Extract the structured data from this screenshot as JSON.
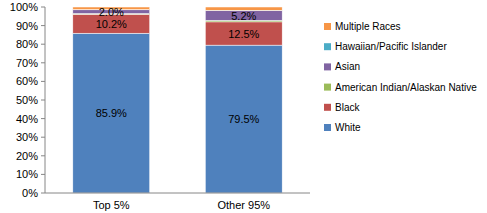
{
  "chart_data": {
    "type": "bar",
    "stacked": true,
    "data_labels": true,
    "grid": false,
    "legend": "right",
    "categories": [
      "Top 5%",
      "Other 95%"
    ],
    "ylim": [
      0,
      100
    ],
    "yticks": [
      {
        "value": 0,
        "label": "0%"
      },
      {
        "value": 10,
        "label": "10%"
      },
      {
        "value": 20,
        "label": "20%"
      },
      {
        "value": 30,
        "label": "30%"
      },
      {
        "value": 40,
        "label": "40%"
      },
      {
        "value": 50,
        "label": "50%"
      },
      {
        "value": 60,
        "label": "60%"
      },
      {
        "value": 70,
        "label": "70%"
      },
      {
        "value": 80,
        "label": "80%"
      },
      {
        "value": 90,
        "label": "90%"
      },
      {
        "value": 100,
        "label": "100%"
      }
    ],
    "series": [
      {
        "name": "White",
        "color": "#4f81bd",
        "values": [
          85.9,
          79.5
        ],
        "value_labels": [
          "85.9%",
          "79.5%"
        ]
      },
      {
        "name": "Black",
        "color": "#c0504d",
        "values": [
          10.2,
          12.5
        ],
        "value_labels": [
          "10.2%",
          "12.5%"
        ]
      },
      {
        "name": "American Indian/Alaskan Native",
        "color": "#9bbb59",
        "values": [
          0.4,
          0.8
        ],
        "value_labels": [
          null,
          null
        ]
      },
      {
        "name": "Asian",
        "color": "#8064a2",
        "values": [
          2.0,
          5.2
        ],
        "value_labels": [
          "2.0%",
          "5.2%"
        ]
      },
      {
        "name": "Hawaiian/Pacific Islander",
        "color": "#4bacc6",
        "values": [
          0.1,
          0.2
        ],
        "value_labels": [
          null,
          null
        ]
      },
      {
        "name": "Multiple Races",
        "color": "#f79646",
        "values": [
          1.4,
          1.8
        ],
        "value_labels": [
          null,
          null
        ]
      }
    ]
  }
}
